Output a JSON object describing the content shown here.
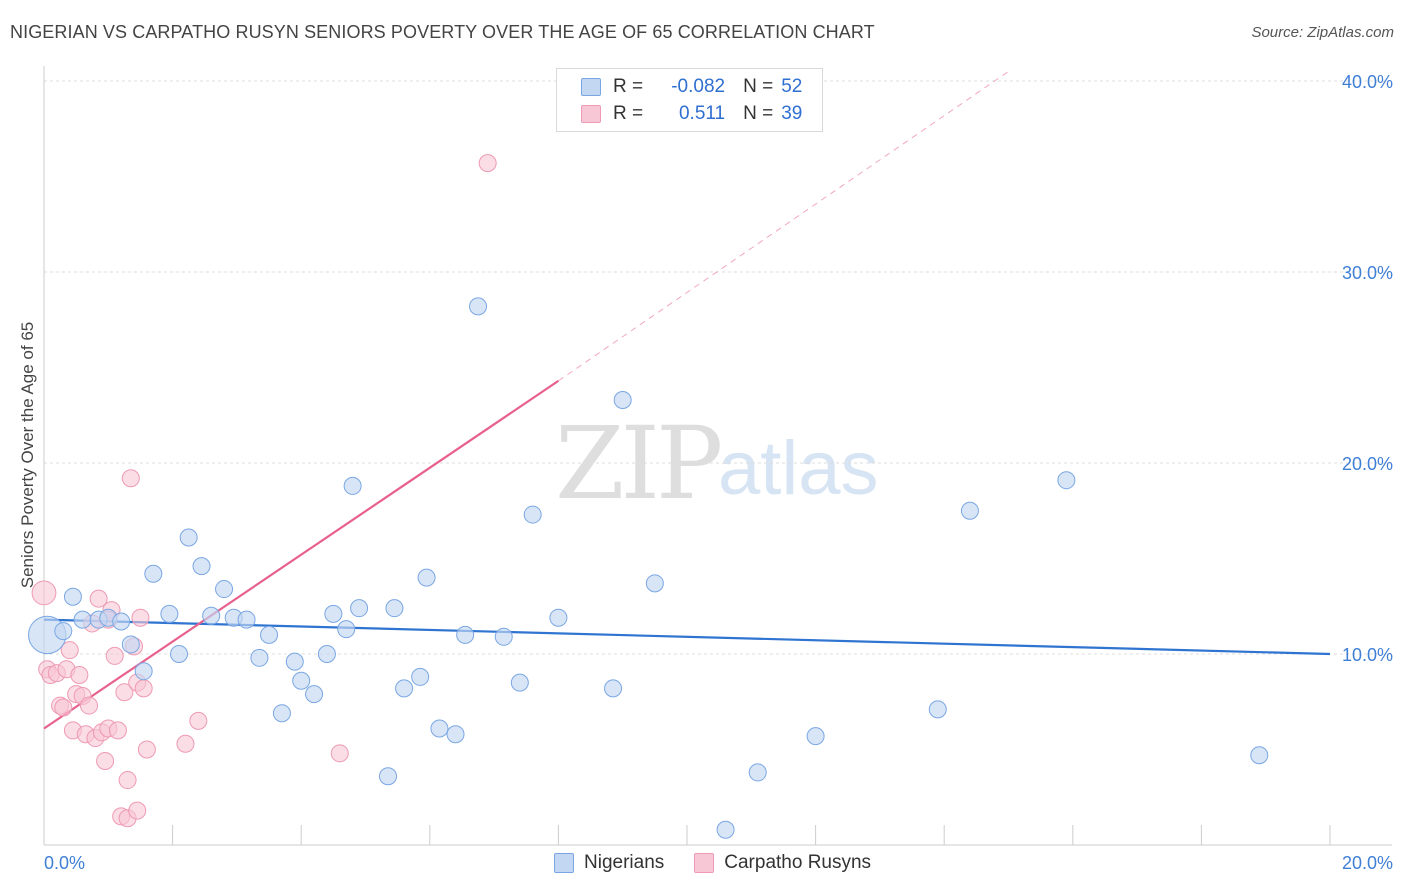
{
  "title": "NIGERIAN VS CARPATHO RUSYN SENIORS POVERTY OVER THE AGE OF 65 CORRELATION CHART",
  "source": "Source: ZipAtlas.com",
  "watermark": {
    "zip": "ZIP",
    "atlas": "atlas"
  },
  "colors": {
    "blue_fill": "#c3d7f3",
    "blue_stroke": "#7aa7e3",
    "blue_line": "#2f74d0",
    "pink_fill": "#f8c7d6",
    "pink_stroke": "#ee9ab4",
    "pink_line": "#e8608c",
    "grid": "#dddddd",
    "tick_text": "#3f7fd6"
  },
  "legend": {
    "row1": {
      "r_label": "R =",
      "r_value": "-0.082",
      "n_label": "N =",
      "n_value": "52"
    },
    "row2": {
      "r_label": "R =",
      "r_value": "0.511",
      "n_label": "N =",
      "n_value": "39"
    }
  },
  "bottom_legend": {
    "nigerians": "Nigerians",
    "rusyns": "Carpatho Rusyns"
  },
  "chart_data": {
    "type": "scatter",
    "title": "NIGERIAN VS CARPATHO RUSYN SENIORS POVERTY OVER THE AGE OF 65 CORRELATION CHART",
    "xlabel": "",
    "ylabel": "Seniors Poverty Over the Age of 65",
    "xlim": [
      0,
      20
    ],
    "ylim": [
      0,
      40
    ],
    "x_tick_labels": [
      "0.0%",
      "20.0%"
    ],
    "y_ticks": [
      10,
      20,
      30,
      40
    ],
    "y_tick_labels": [
      "10.0%",
      "20.0%",
      "30.0%",
      "40.0%"
    ],
    "grid": true,
    "legend_position": "top-center",
    "series": [
      {
        "name": "Nigerians",
        "r": -0.082,
        "n": 52,
        "trend": {
          "x0": 0,
          "y0": 11.8,
          "x1": 20,
          "y1": 10.0
        },
        "points": [
          {
            "x": 0.05,
            "y": 11.0,
            "s": 2.2
          },
          {
            "x": 0.3,
            "y": 11.2
          },
          {
            "x": 0.45,
            "y": 13.0
          },
          {
            "x": 0.6,
            "y": 11.8
          },
          {
            "x": 0.85,
            "y": 11.8
          },
          {
            "x": 1.0,
            "y": 11.9
          },
          {
            "x": 1.2,
            "y": 11.7
          },
          {
            "x": 1.35,
            "y": 10.5
          },
          {
            "x": 1.55,
            "y": 9.1
          },
          {
            "x": 1.7,
            "y": 14.2
          },
          {
            "x": 1.95,
            "y": 12.1
          },
          {
            "x": 2.1,
            "y": 10.0
          },
          {
            "x": 2.25,
            "y": 16.1
          },
          {
            "x": 2.45,
            "y": 14.6
          },
          {
            "x": 2.6,
            "y": 12.0
          },
          {
            "x": 2.8,
            "y": 13.4
          },
          {
            "x": 2.95,
            "y": 11.9
          },
          {
            "x": 3.15,
            "y": 11.8
          },
          {
            "x": 3.35,
            "y": 9.8
          },
          {
            "x": 3.5,
            "y": 11.0
          },
          {
            "x": 3.7,
            "y": 6.9
          },
          {
            "x": 3.9,
            "y": 9.6
          },
          {
            "x": 4.0,
            "y": 8.6
          },
          {
            "x": 4.2,
            "y": 7.9
          },
          {
            "x": 4.4,
            "y": 10.0
          },
          {
            "x": 4.5,
            "y": 12.1
          },
          {
            "x": 4.7,
            "y": 11.3
          },
          {
            "x": 4.8,
            "y": 18.8
          },
          {
            "x": 4.9,
            "y": 12.4
          },
          {
            "x": 5.35,
            "y": 3.6
          },
          {
            "x": 5.45,
            "y": 12.4
          },
          {
            "x": 5.6,
            "y": 8.2
          },
          {
            "x": 5.85,
            "y": 8.8
          },
          {
            "x": 5.95,
            "y": 14.0
          },
          {
            "x": 6.15,
            "y": 6.1
          },
          {
            "x": 6.4,
            "y": 5.8
          },
          {
            "x": 6.55,
            "y": 11.0
          },
          {
            "x": 6.75,
            "y": 28.2
          },
          {
            "x": 7.15,
            "y": 10.9
          },
          {
            "x": 7.4,
            "y": 8.5
          },
          {
            "x": 7.6,
            "y": 17.3
          },
          {
            "x": 8.0,
            "y": 11.9
          },
          {
            "x": 8.85,
            "y": 8.2
          },
          {
            "x": 9.0,
            "y": 23.3
          },
          {
            "x": 9.5,
            "y": 13.7
          },
          {
            "x": 10.6,
            "y": 0.8
          },
          {
            "x": 11.1,
            "y": 3.8
          },
          {
            "x": 12.0,
            "y": 5.7
          },
          {
            "x": 13.9,
            "y": 7.1
          },
          {
            "x": 14.4,
            "y": 17.5
          },
          {
            "x": 15.9,
            "y": 19.1
          },
          {
            "x": 18.9,
            "y": 4.7
          }
        ]
      },
      {
        "name": "Carpatho Rusyns",
        "r": 0.511,
        "n": 39,
        "trend": {
          "x0": 0,
          "y0": 6.1,
          "x1": 8.0,
          "y1": 24.3
        },
        "trend_dashed": {
          "x0": 8.0,
          "y0": 24.3,
          "x1": 15.0,
          "y1": 40.5
        },
        "points": [
          {
            "x": 0.0,
            "y": 13.2,
            "s": 1.4
          },
          {
            "x": 0.05,
            "y": 9.2
          },
          {
            "x": 0.1,
            "y": 8.9
          },
          {
            "x": 0.2,
            "y": 9.0
          },
          {
            "x": 0.25,
            "y": 7.3
          },
          {
            "x": 0.3,
            "y": 7.2
          },
          {
            "x": 0.35,
            "y": 9.2
          },
          {
            "x": 0.4,
            "y": 10.2
          },
          {
            "x": 0.45,
            "y": 6.0
          },
          {
            "x": 0.5,
            "y": 7.9
          },
          {
            "x": 0.55,
            "y": 8.9
          },
          {
            "x": 0.6,
            "y": 7.8
          },
          {
            "x": 0.65,
            "y": 5.8
          },
          {
            "x": 0.75,
            "y": 11.6
          },
          {
            "x": 0.7,
            "y": 7.3
          },
          {
            "x": 0.8,
            "y": 5.6
          },
          {
            "x": 0.85,
            "y": 12.9
          },
          {
            "x": 0.9,
            "y": 5.9
          },
          {
            "x": 0.95,
            "y": 4.4
          },
          {
            "x": 1.0,
            "y": 6.1
          },
          {
            "x": 1.05,
            "y": 12.3
          },
          {
            "x": 1.1,
            "y": 9.9
          },
          {
            "x": 1.15,
            "y": 6.0
          },
          {
            "x": 1.2,
            "y": 1.5
          },
          {
            "x": 1.25,
            "y": 8.0
          },
          {
            "x": 1.3,
            "y": 1.4
          },
          {
            "x": 1.4,
            "y": 10.4
          },
          {
            "x": 1.5,
            "y": 11.9
          },
          {
            "x": 1.3,
            "y": 3.4
          },
          {
            "x": 1.35,
            "y": 19.2
          },
          {
            "x": 1.45,
            "y": 8.5
          },
          {
            "x": 1.45,
            "y": 1.8
          },
          {
            "x": 1.55,
            "y": 8.2
          },
          {
            "x": 1.6,
            "y": 5.0
          },
          {
            "x": 2.2,
            "y": 5.3
          },
          {
            "x": 2.4,
            "y": 6.5
          },
          {
            "x": 4.6,
            "y": 4.8
          },
          {
            "x": 6.9,
            "y": 35.7
          },
          {
            "x": 1.0,
            "y": 11.8
          }
        ]
      }
    ]
  }
}
